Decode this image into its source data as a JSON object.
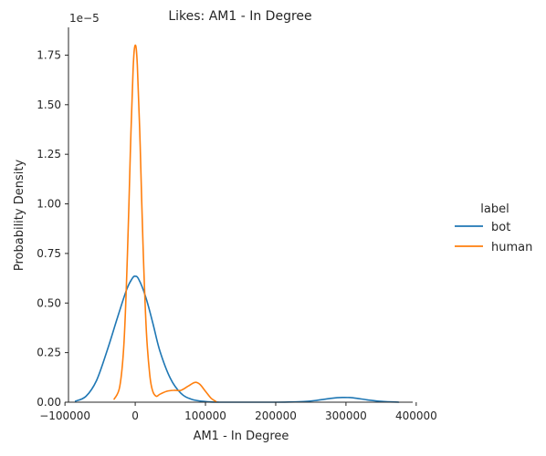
{
  "chart_data": {
    "type": "line",
    "title": "Likes: AM1 - In Degree",
    "xlabel": "AM1 - In Degree",
    "ylabel": "Probability Density",
    "y_offset_label": "1e−5",
    "xlim": [
      -95000,
      395000
    ],
    "ylim": [
      0,
      1.89
    ],
    "x_ticks": [
      -100000,
      0,
      100000,
      200000,
      300000,
      400000
    ],
    "x_tick_labels": [
      "−100000",
      "0",
      "100000",
      "200000",
      "300000",
      "400000"
    ],
    "y_ticks": [
      0,
      0.25,
      0.5,
      0.75,
      1.0,
      1.25,
      1.5,
      1.75
    ],
    "y_tick_labels": [
      "0.00",
      "0.25",
      "0.50",
      "0.75",
      "1.00",
      "1.25",
      "1.50",
      "1.75"
    ],
    "grid": false,
    "legend": {
      "title": "label",
      "placement": "right"
    },
    "series": [
      {
        "name": "bot",
        "color": "#1f77b4",
        "points": [
          [
            -85000,
            0.005
          ],
          [
            -70000,
            0.03
          ],
          [
            -55000,
            0.11
          ],
          [
            -40000,
            0.26
          ],
          [
            -25000,
            0.43
          ],
          [
            -12000,
            0.57
          ],
          [
            -4000,
            0.625
          ],
          [
            0,
            0.635
          ],
          [
            5000,
            0.62
          ],
          [
            15000,
            0.53
          ],
          [
            25000,
            0.4
          ],
          [
            35000,
            0.26
          ],
          [
            50000,
            0.12
          ],
          [
            65000,
            0.045
          ],
          [
            80000,
            0.015
          ],
          [
            100000,
            0.003
          ],
          [
            120000,
            0.0
          ],
          [
            150000,
            0.0
          ],
          [
            200000,
            0.0
          ],
          [
            240000,
            0.003
          ],
          [
            260000,
            0.01
          ],
          [
            280000,
            0.02
          ],
          [
            295000,
            0.024
          ],
          [
            310000,
            0.022
          ],
          [
            330000,
            0.012
          ],
          [
            350000,
            0.004
          ],
          [
            375000,
            0.0
          ]
        ]
      },
      {
        "name": "human",
        "color": "#ff7f0e",
        "points": [
          [
            -30000,
            0.015
          ],
          [
            -22000,
            0.08
          ],
          [
            -16000,
            0.3
          ],
          [
            -11000,
            0.75
          ],
          [
            -7000,
            1.25
          ],
          [
            -3000,
            1.68
          ],
          [
            0,
            1.8
          ],
          [
            3000,
            1.7
          ],
          [
            7000,
            1.3
          ],
          [
            11000,
            0.8
          ],
          [
            16000,
            0.35
          ],
          [
            21000,
            0.13
          ],
          [
            25000,
            0.055
          ],
          [
            30000,
            0.03
          ],
          [
            35000,
            0.04
          ],
          [
            45000,
            0.055
          ],
          [
            55000,
            0.06
          ],
          [
            65000,
            0.06
          ],
          [
            75000,
            0.08
          ],
          [
            85000,
            0.1
          ],
          [
            92000,
            0.09
          ],
          [
            100000,
            0.055
          ],
          [
            108000,
            0.02
          ],
          [
            115000,
            0.003
          ]
        ]
      }
    ]
  }
}
